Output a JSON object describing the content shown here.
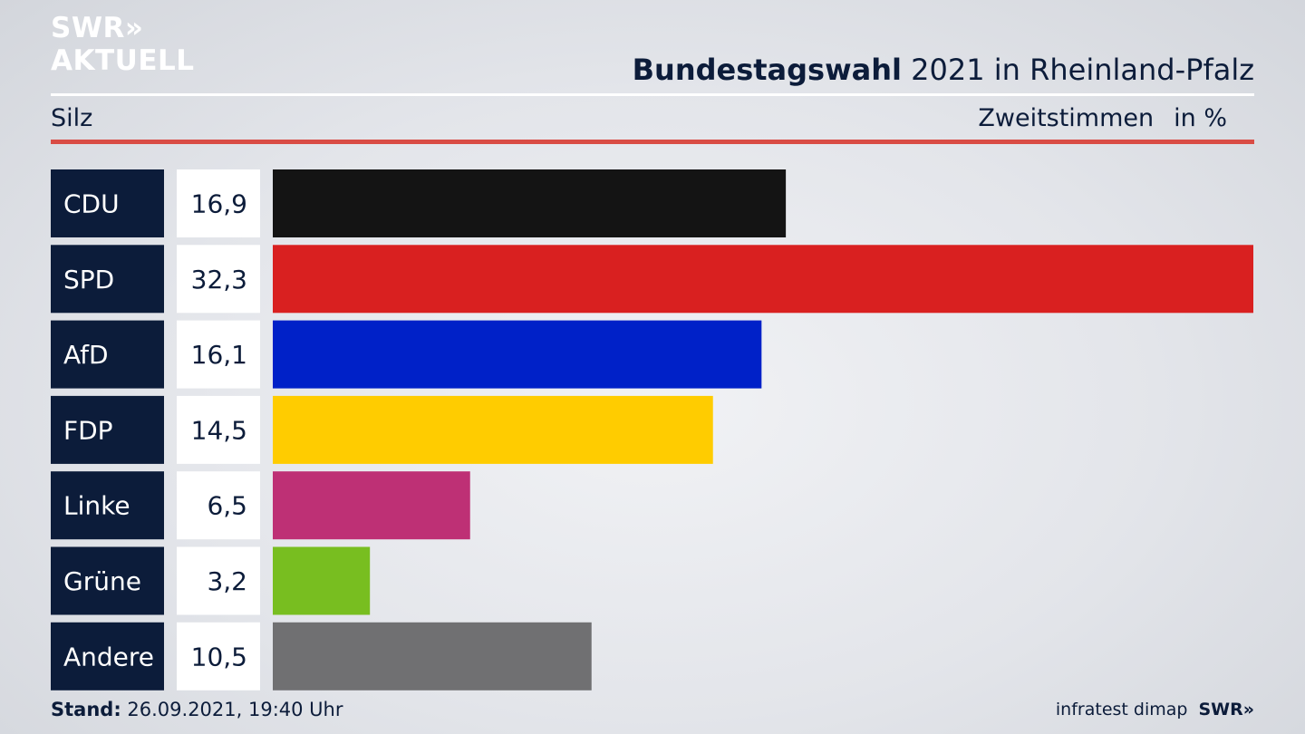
{
  "logo": {
    "line1": "SWR»",
    "line2": "AKTUELL"
  },
  "header": {
    "title_bold": "Bundestagswahl",
    "title_rest": " 2021 in Rheinland-Pfalz",
    "location": "Silz",
    "measure": "Zweitstimmen",
    "unit": "in %"
  },
  "chart_data": {
    "type": "bar",
    "orientation": "horizontal",
    "categories": [
      "CDU",
      "SPD",
      "AfD",
      "FDP",
      "Linke",
      "Grüne",
      "Andere"
    ],
    "values": [
      16.9,
      32.3,
      16.1,
      14.5,
      6.5,
      3.2,
      10.5
    ],
    "value_labels": [
      "16,9",
      "32,3",
      "16,1",
      "14,5",
      "6,5",
      "3,2",
      "10,5"
    ],
    "colors": [
      "#141414",
      "#d92020",
      "#0021c8",
      "#ffcc00",
      "#be3075",
      "#78be20",
      "#707072"
    ],
    "xlim": [
      0,
      32.3
    ],
    "grid": false,
    "label_box_color": "#0c1c3a"
  },
  "footer": {
    "stand_label": "Stand:",
    "stand_value": " 26.09.2021, 19:40 Uhr",
    "source": "infratest dimap",
    "brand": "SWR»"
  }
}
